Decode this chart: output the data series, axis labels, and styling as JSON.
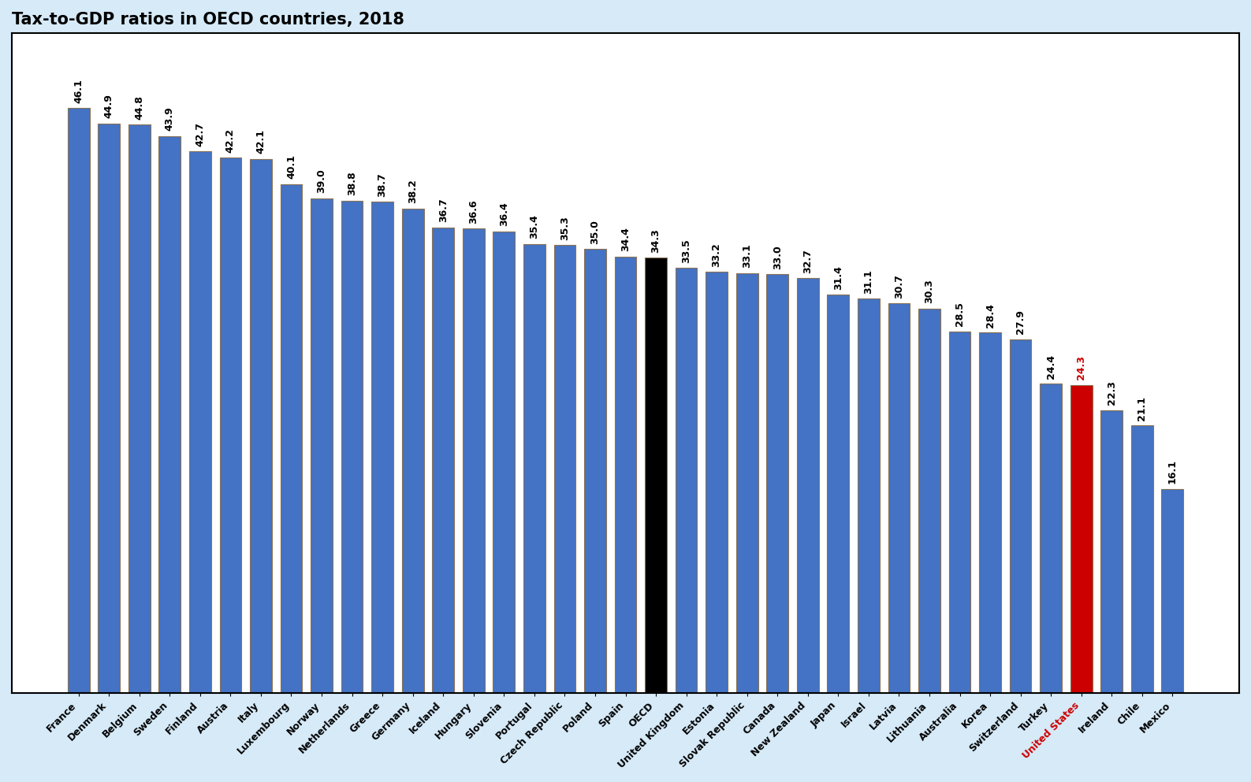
{
  "title": "Tax-to-GDP ratios in OECD countries, 2018",
  "categories": [
    "France",
    "Denmark",
    "Belgium",
    "Sweden",
    "Finland",
    "Austria",
    "Italy",
    "Luxembourg",
    "Norway",
    "Netherlands",
    "Greece",
    "Germany",
    "Iceland",
    "Hungary",
    "Slovenia",
    "Portugal",
    "Czech Republic",
    "Poland",
    "Spain",
    "OECD",
    "United Kingdom",
    "Estonia",
    "Slovak Republic",
    "Canada",
    "New Zealand",
    "Japan",
    "Israel",
    "Latvia",
    "Lithuania",
    "Australia",
    "Korea",
    "Switzerland",
    "Turkey",
    "United States",
    "Ireland",
    "Chile",
    "Mexico"
  ],
  "values": [
    46.1,
    44.9,
    44.8,
    43.9,
    42.7,
    42.2,
    42.1,
    40.1,
    39.0,
    38.8,
    38.7,
    38.2,
    36.7,
    36.6,
    36.4,
    35.4,
    35.3,
    35.0,
    34.4,
    34.3,
    33.5,
    33.2,
    33.1,
    33.0,
    32.7,
    31.4,
    31.1,
    30.7,
    30.3,
    28.5,
    28.4,
    27.9,
    24.4,
    24.3,
    22.3,
    21.1,
    16.1
  ],
  "blue": "#4472C4",
  "black": "#000000",
  "red": "#CC0000",
  "bar_edge_color": "#8B7355",
  "figure_bg": "#D6EAF8",
  "plot_bg": "#FFFFFF",
  "title_fontsize": 15,
  "title_fontweight": "bold",
  "bar_value_fontsize": 9,
  "ylim": [
    0,
    52
  ],
  "bar_width": 0.72
}
